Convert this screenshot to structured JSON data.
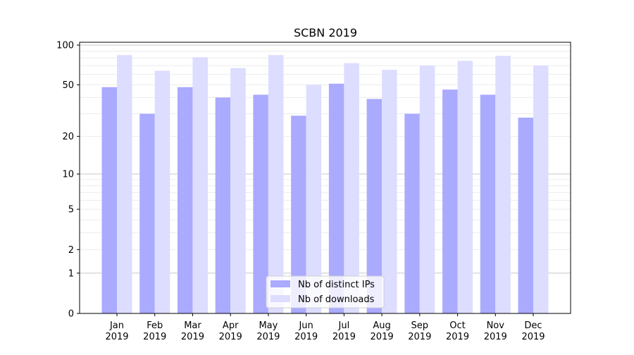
{
  "chart_data": {
    "type": "bar",
    "title": "SCBN 2019",
    "xlabel": "",
    "ylabel": "",
    "yscale": "log(1+x)",
    "ylim": [
      0,
      105
    ],
    "yticks": [
      0,
      1,
      2,
      5,
      10,
      20,
      50,
      100
    ],
    "ytick_labels": [
      "0",
      "1",
      "2",
      "5",
      "10",
      "20",
      "50",
      "100"
    ],
    "grid": true,
    "legend_position": "bottom-center",
    "categories": [
      "Jan\n2019",
      "Feb\n2019",
      "Mar\n2019",
      "Apr\n2019",
      "May\n2019",
      "Jun\n2019",
      "Jul\n2019",
      "Aug\n2019",
      "Sep\n2019",
      "Oct\n2019",
      "Nov\n2019",
      "Dec\n2019"
    ],
    "series": [
      {
        "name": "Nb of distinct IPs",
        "color": "#aaaaff",
        "values": [
          48,
          30,
          48,
          40,
          42,
          29,
          51,
          39,
          30,
          46,
          42,
          28
        ]
      },
      {
        "name": "Nb of downloads",
        "color": "#ddddff",
        "values": [
          84,
          64,
          81,
          67,
          84,
          50,
          73,
          65,
          70,
          76,
          83,
          70
        ]
      }
    ]
  }
}
